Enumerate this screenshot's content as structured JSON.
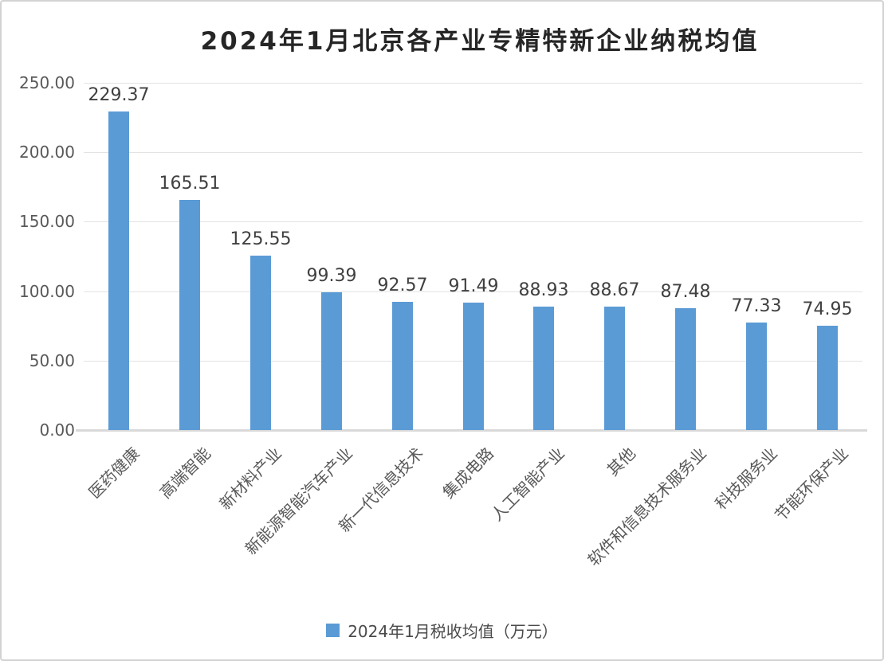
{
  "chart_data": {
    "type": "bar",
    "title": "2024年1月北京各产业专精特新企业纳税均值",
    "categories": [
      "医药健康",
      "高端智能",
      "新材料产业",
      "新能源智能汽车产业",
      "新一代信息技术",
      "集成电路",
      "人工智能产业",
      "其他",
      "软件和信息技术服务业",
      "科技服务业",
      "节能环保产业"
    ],
    "values": [
      229.37,
      165.51,
      125.55,
      99.39,
      92.57,
      91.49,
      88.93,
      88.67,
      87.48,
      77.33,
      74.95
    ],
    "data_labels": [
      "229.37",
      "165.51",
      "125.55",
      "99.39",
      "92.57",
      "91.49",
      "88.93",
      "88.67",
      "87.48",
      "77.33",
      "74.95"
    ],
    "y_ticks": [
      "0.00",
      "50.00",
      "100.00",
      "150.00",
      "200.00",
      "250.00"
    ],
    "ylim": [
      0,
      250
    ],
    "xlabel": "",
    "ylabel": "",
    "grid": true,
    "legend_position": "bottom",
    "legend": [
      "2024年1月税收均值（万元）"
    ],
    "bar_color": "#5B9BD5",
    "colors": {
      "title": "#262626",
      "data_label": "#404040",
      "axis_label": "#595959",
      "gridline": "#e3e3e3",
      "axis_line": "#d9d9d9",
      "frame_border": "#d2d2d2",
      "background": "#ffffff"
    }
  }
}
